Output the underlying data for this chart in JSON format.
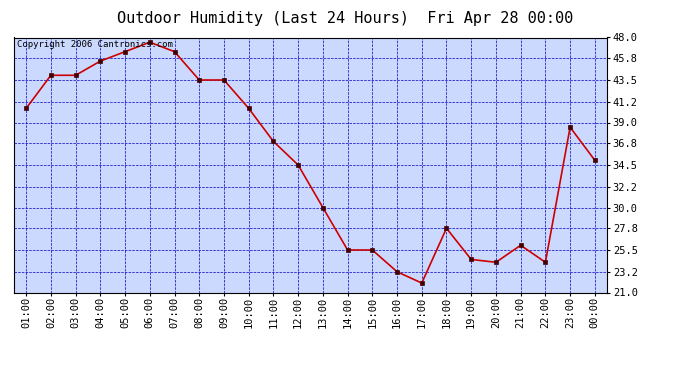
{
  "title": "Outdoor Humidity (Last 24 Hours)  Fri Apr 28 00:00",
  "copyright_text": "Copyright 2006 Cantronics.com",
  "x_labels": [
    "01:00",
    "02:00",
    "03:00",
    "04:00",
    "05:00",
    "06:00",
    "07:00",
    "08:00",
    "09:00",
    "10:00",
    "11:00",
    "12:00",
    "13:00",
    "14:00",
    "15:00",
    "16:00",
    "17:00",
    "18:00",
    "19:00",
    "20:00",
    "21:00",
    "22:00",
    "23:00",
    "00:00"
  ],
  "y_values": [
    40.5,
    44.0,
    44.0,
    45.5,
    46.5,
    47.5,
    46.5,
    43.5,
    43.5,
    40.5,
    37.0,
    34.5,
    30.0,
    25.5,
    25.5,
    23.2,
    22.0,
    27.8,
    24.5,
    24.2,
    26.0,
    24.2,
    38.5,
    35.0
  ],
  "line_color": "#cc0000",
  "marker_color": "#440000",
  "bg_color": "#ffffff",
  "plot_bg_color": "#ccd9ff",
  "grid_color": "#0000bb",
  "border_color": "#000000",
  "title_color": "#000000",
  "y_min": 21.0,
  "y_max": 48.0,
  "y_ticks": [
    21.0,
    23.2,
    25.5,
    27.8,
    30.0,
    32.2,
    34.5,
    36.8,
    39.0,
    41.2,
    43.5,
    45.8,
    48.0
  ],
  "title_fontsize": 11,
  "tick_fontsize": 7.5,
  "copyright_fontsize": 6.5
}
